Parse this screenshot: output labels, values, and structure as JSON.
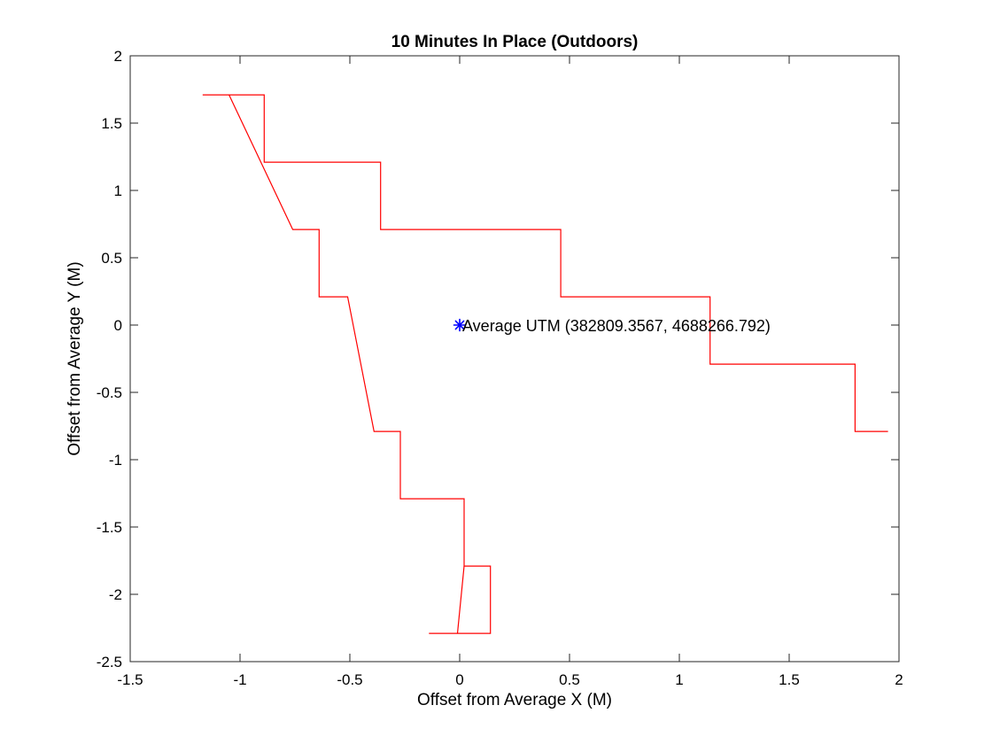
{
  "chart_data": {
    "type": "line",
    "title": "10 Minutes In Place (Outdoors)",
    "xlabel": "Offset from Average X (M)",
    "ylabel": "Offset from Average Y (M)",
    "xlim": [
      -1.5,
      2
    ],
    "ylim": [
      -2.5,
      2
    ],
    "xticks": [
      -1.5,
      -1,
      -0.5,
      0,
      0.5,
      1,
      1.5,
      2
    ],
    "xtick_labels": [
      "-1.5",
      "-1",
      "-0.5",
      "0",
      "0.5",
      "1",
      "1.5",
      "2"
    ],
    "yticks": [
      -2.5,
      -2,
      -1.5,
      -1,
      -0.5,
      0,
      0.5,
      1,
      1.5,
      2
    ],
    "ytick_labels": [
      "-2.5",
      "-2",
      "-1.5",
      "-1",
      "-0.5",
      "0",
      "0.5",
      "1",
      "1.5",
      "2"
    ],
    "grid": false,
    "series": [
      {
        "color": "#ff0000",
        "x": [
          -0.14,
          0.14,
          0.14,
          0.02,
          0.02,
          -0.27,
          -0.27,
          -0.39,
          -0.51,
          -0.64,
          -0.64,
          -0.76,
          -1.05,
          -1.17,
          -0.89,
          -0.89,
          -0.36,
          -0.36,
          0.46,
          0.46,
          1.14,
          1.14,
          1.8,
          1.8,
          1.95
        ],
        "y": [
          -2.29,
          -2.29,
          -1.79,
          -1.79,
          -1.29,
          -1.29,
          -0.79,
          -0.79,
          0.21,
          0.21,
          0.71,
          0.71,
          1.71,
          1.71,
          1.71,
          1.21,
          1.21,
          0.71,
          0.71,
          0.21,
          0.21,
          -0.29,
          -0.29,
          -0.79,
          -0.79
        ]
      },
      {
        "color": "#ff0000",
        "x": [
          -0.01,
          0.02,
          0.02
        ],
        "y": [
          -2.29,
          -1.79,
          -1.79
        ]
      }
    ],
    "marker_point": {
      "x": 0,
      "y": 0,
      "color": "#0000ff",
      "label": "Average UTM (382809.3567, 4688266.792)"
    }
  }
}
